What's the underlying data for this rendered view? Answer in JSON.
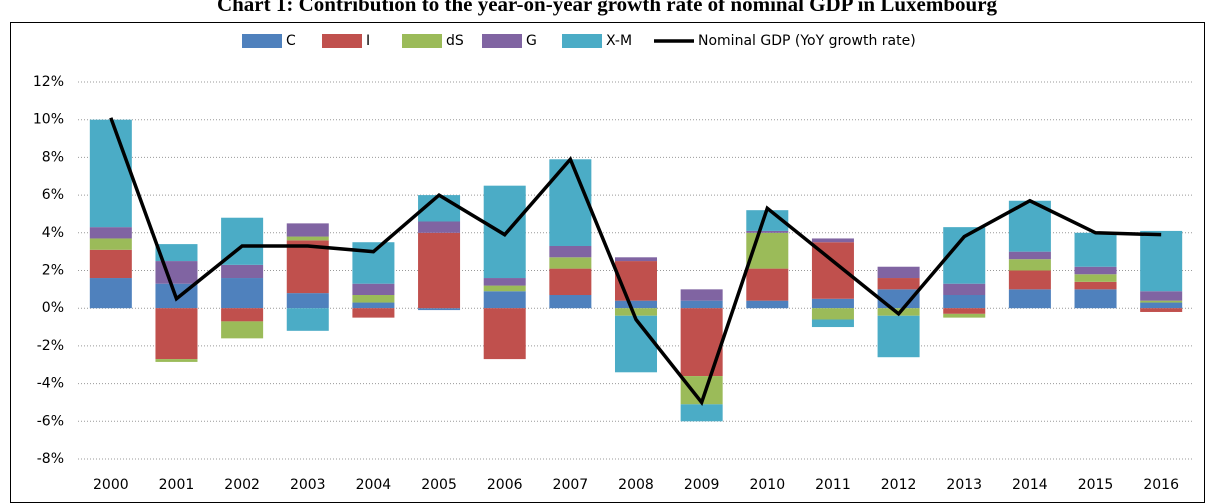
{
  "chart_data": {
    "type": "bar",
    "title": "Chart 1: Contribution to the year-on-year growth rate of nominal GDP in Luxembourg",
    "categories": [
      "2000",
      "2001",
      "2002",
      "2003",
      "2004",
      "2005",
      "2006",
      "2007",
      "2008",
      "2009",
      "2010",
      "2011",
      "2012",
      "2013",
      "2014",
      "2015",
      "2016"
    ],
    "series": [
      {
        "name": "C",
        "color": "#4f81bd",
        "type": "bar",
        "values": [
          1.6,
          1.3,
          1.6,
          0.8,
          0.3,
          -0.1,
          0.9,
          0.7,
          0.4,
          0.4,
          0.4,
          0.5,
          1.0,
          0.7,
          1.0,
          1.0,
          0.3
        ]
      },
      {
        "name": "I",
        "color": "#c0504d",
        "type": "bar",
        "values": [
          1.5,
          -2.7,
          -0.7,
          2.8,
          -0.5,
          4.0,
          -2.7,
          1.4,
          2.1,
          -3.6,
          1.7,
          3.0,
          0.6,
          -0.3,
          1.0,
          0.4,
          -0.2
        ]
      },
      {
        "name": "dS",
        "color": "#9bbb59",
        "type": "bar",
        "values": [
          0.6,
          -0.15,
          -0.9,
          0.2,
          0.4,
          0.0,
          0.3,
          0.6,
          -0.4,
          -1.5,
          1.9,
          -0.6,
          -0.4,
          -0.2,
          0.6,
          0.4,
          0.1
        ]
      },
      {
        "name": "G",
        "color": "#8064a2",
        "type": "bar",
        "values": [
          0.6,
          1.2,
          0.7,
          0.7,
          0.6,
          0.6,
          0.4,
          0.6,
          0.2,
          0.6,
          0.1,
          0.2,
          0.6,
          0.6,
          0.4,
          0.4,
          0.5
        ]
      },
      {
        "name": "X-M",
        "color": "#4bacc6",
        "type": "bar",
        "values": [
          5.7,
          0.9,
          2.5,
          -1.2,
          2.2,
          1.4,
          4.9,
          4.6,
          -3.0,
          -0.9,
          1.1,
          -0.4,
          -2.2,
          3.0,
          2.7,
          1.8,
          3.2
        ]
      },
      {
        "name": "Nominal GDP (YoY growth rate)",
        "color": "#000000",
        "type": "line",
        "values": [
          10.1,
          0.5,
          3.3,
          3.3,
          3.0,
          6.0,
          3.9,
          7.9,
          -0.6,
          -5.0,
          5.3,
          2.5,
          -0.3,
          3.8,
          5.7,
          4.0,
          3.9
        ]
      }
    ],
    "ylim": [
      -8,
      12
    ],
    "yticks": [
      {
        "value": -8,
        "label": "-8%"
      },
      {
        "value": -6,
        "label": "-6%"
      },
      {
        "value": -4,
        "label": "-4%"
      },
      {
        "value": -2,
        "label": "-2%"
      },
      {
        "value": 0,
        "label": "0%"
      },
      {
        "value": 2,
        "label": "2%"
      },
      {
        "value": 4,
        "label": "4%"
      },
      {
        "value": 6,
        "label": "6%"
      },
      {
        "value": 8,
        "label": "8%"
      },
      {
        "value": 10,
        "label": "10%"
      },
      {
        "value": 12,
        "label": "12%"
      }
    ],
    "grid": true,
    "legend": "top"
  }
}
